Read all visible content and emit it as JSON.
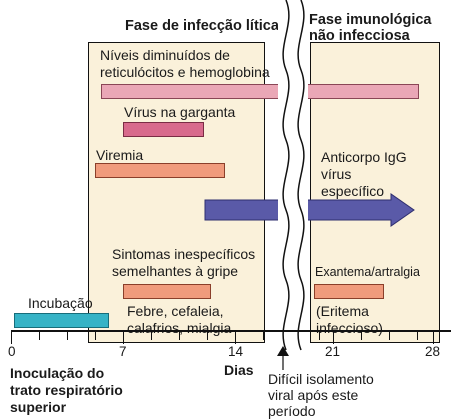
{
  "phases": {
    "lytic_title": "Fase de infecção lítica",
    "immune_title_line1": "Fase imunológica",
    "immune_title_line2": "não infecciosa"
  },
  "events": {
    "reticulocytes_line1": "Níveis diminuídos de",
    "reticulocytes_line2": "reticulócitos e hemoglobina",
    "throat_virus": "Vírus na garganta",
    "viremia": "Viremia",
    "igg_line1": "Anticorpo IgG",
    "igg_line2": "vírus",
    "igg_line3": "específico",
    "flu_like_line1": "Sintomas inespecíficos",
    "flu_like_line2": "semelhantes à gripe",
    "fever_line1": "Febre, cefaleia,",
    "fever_line2": "calafrios, mialgia",
    "exanthema": "Exantema/artralgia",
    "erythema_line1": "(Eritema",
    "erythema_line2": "infeccioso)",
    "incubation": "Incubação"
  },
  "axis": {
    "ticks": [
      "0",
      "7",
      "14",
      "21",
      "28"
    ],
    "label": "Dias",
    "inoculation_line1": "Inoculação do",
    "inoculation_line2": "trato respiratório",
    "inoculation_line3": "superior",
    "isolation_line1": "Difícil isolamento",
    "isolation_line2": "viral após este",
    "isolation_line3": "período"
  },
  "colors": {
    "panel": "#faf1da",
    "reticulocytes": "#eaa7b6",
    "throat_virus": "#d86a8c",
    "viremia": "#f09b7c",
    "symptoms": "#f09b7c",
    "incubation": "#36b3c6",
    "igg_arrow": "#5a5aa8"
  }
}
